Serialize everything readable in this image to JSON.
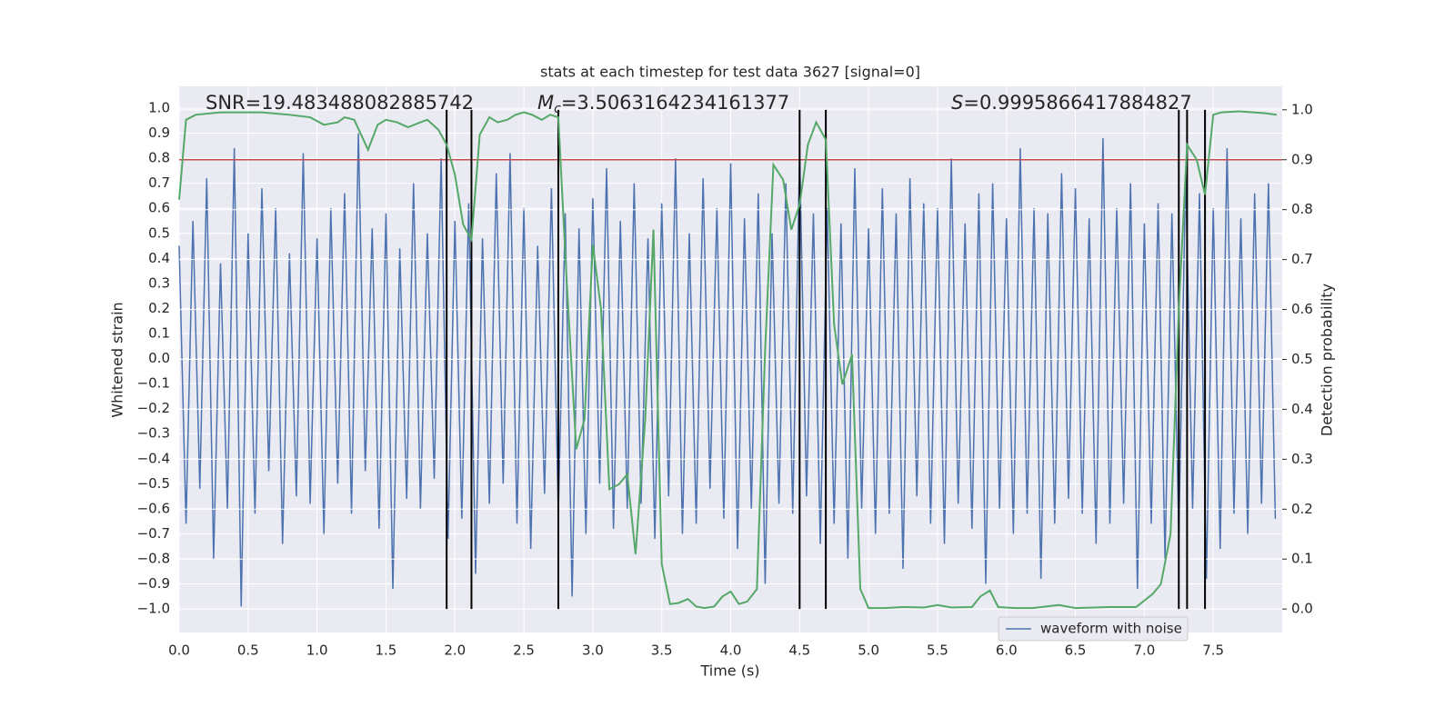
{
  "chart_data": {
    "type": "line",
    "title": "stats at each timestep for test data 3627 [signal=0]",
    "xlabel": "Time (s)",
    "ylabel": "Whitened strain",
    "y2label": "Detection probability",
    "annotations": [
      {
        "text": "SNR=19.483488082885742"
      },
      {
        "symbol": "M",
        "subscript": "c",
        "text": "=3.5063164234161377"
      },
      {
        "symbol": "S",
        "text": "=0.9995866417884827"
      }
    ],
    "xlim": [
      0,
      8
    ],
    "ylim": [
      -1.094,
      1.087
    ],
    "y2lim": [
      -0.047,
      1.047
    ],
    "xticks": [
      {
        "value": 0,
        "label": "0.0"
      },
      0.5,
      {
        "value": 1,
        "label": "1.0"
      },
      1.5,
      {
        "value": 2,
        "label": "2.0"
      },
      2.5,
      {
        "value": 3,
        "label": "3.0"
      },
      3.5,
      {
        "value": 4,
        "label": "4.0"
      },
      4.5,
      {
        "value": 5,
        "label": "5.0"
      },
      5.5,
      {
        "value": 6,
        "label": "6.0"
      },
      6.5,
      {
        "value": 7,
        "label": "7.0"
      },
      7.5
    ],
    "yticks": [
      {
        "value": -1,
        "label": "−1.0"
      },
      {
        "value": -0.9,
        "label": "−0.9"
      },
      {
        "value": -0.8,
        "label": "−0.8"
      },
      {
        "value": -0.7,
        "label": "−0.7"
      },
      {
        "value": -0.6,
        "label": "−0.6"
      },
      {
        "value": -0.5,
        "label": "−0.5"
      },
      {
        "value": -0.4,
        "label": "−0.4"
      },
      {
        "value": -0.3,
        "label": "−0.3"
      },
      {
        "value": -0.2,
        "label": "−0.2"
      },
      {
        "value": -0.1,
        "label": "−0.1"
      },
      {
        "value": 0,
        "label": "0.0"
      },
      0.1,
      0.2,
      0.3,
      0.4,
      0.5,
      0.6,
      0.7,
      0.8,
      0.9,
      {
        "value": 1,
        "label": "1.0"
      }
    ],
    "y2ticks": [
      {
        "value": 0,
        "label": "0.0"
      },
      0.1,
      0.2,
      0.3,
      0.4,
      0.5,
      0.6,
      0.7,
      0.8,
      0.9,
      {
        "value": 1,
        "label": "1.0"
      }
    ],
    "grid": true,
    "legend": "lower right",
    "series": [
      {
        "name": "waveform with noise",
        "color": "#4c72b0",
        "x": [
          0,
          0.05,
          0.1,
          0.15,
          0.2,
          0.25,
          0.3,
          0.35,
          0.4,
          0.45,
          0.5,
          0.55,
          0.6,
          0.65,
          0.7,
          0.75,
          0.8,
          0.85,
          0.9,
          0.95,
          1,
          1.05,
          1.1,
          1.15,
          1.2,
          1.25,
          1.3,
          1.35,
          1.4,
          1.45,
          1.5,
          1.55,
          1.6,
          1.65,
          1.7,
          1.75,
          1.8,
          1.85,
          1.9,
          1.95,
          2,
          2.05,
          2.1,
          2.15,
          2.2,
          2.25,
          2.3,
          2.35,
          2.4,
          2.45,
          2.5,
          2.55,
          2.6,
          2.65,
          2.7,
          2.75,
          2.8,
          2.85,
          2.9,
          2.95,
          3,
          3.05,
          3.1,
          3.15,
          3.2,
          3.25,
          3.3,
          3.35,
          3.4,
          3.45,
          3.5,
          3.55,
          3.6,
          3.65,
          3.7,
          3.75,
          3.8,
          3.85,
          3.9,
          3.95,
          4,
          4.05,
          4.1,
          4.15,
          4.2,
          4.25,
          4.3,
          4.35,
          4.4,
          4.45,
          4.5,
          4.55,
          4.6,
          4.65,
          4.7,
          4.75,
          4.8,
          4.85,
          4.9,
          4.95,
          5,
          5.05,
          5.1,
          5.15,
          5.2,
          5.25,
          5.3,
          5.35,
          5.4,
          5.45,
          5.5,
          5.55,
          5.6,
          5.65,
          5.7,
          5.75,
          5.8,
          5.85,
          5.9,
          5.95,
          6,
          6.05,
          6.1,
          6.15,
          6.2,
          6.25,
          6.3,
          6.35,
          6.4,
          6.45,
          6.5,
          6.55,
          6.6,
          6.65,
          6.7,
          6.75,
          6.8,
          6.85,
          6.9,
          6.95,
          7,
          7.05,
          7.1,
          7.15,
          7.2,
          7.25,
          7.3,
          7.35,
          7.4,
          7.45,
          7.5,
          7.55,
          7.6,
          7.65,
          7.7,
          7.75,
          7.8,
          7.85,
          7.9,
          7.95
        ],
        "values": [
          0.45,
          -0.66,
          0.55,
          -0.52,
          0.72,
          -0.8,
          0.38,
          -0.6,
          0.84,
          -0.99,
          0.5,
          -0.62,
          0.68,
          -0.45,
          0.6,
          -0.74,
          0.42,
          -0.55,
          0.82,
          -0.58,
          0.48,
          -0.7,
          0.6,
          -0.5,
          0.66,
          -0.62,
          0.9,
          -0.45,
          0.52,
          -0.68,
          0.58,
          -0.92,
          0.44,
          -0.56,
          0.7,
          -0.6,
          0.5,
          -0.48,
          0.8,
          -0.72,
          0.55,
          -0.64,
          0.62,
          -0.86,
          0.48,
          -0.58,
          0.74,
          -0.5,
          0.82,
          -0.66,
          0.6,
          -0.76,
          0.45,
          -0.54,
          0.68,
          -0.62,
          0.58,
          -0.95,
          0.52,
          -0.7,
          0.64,
          -0.5,
          0.76,
          -0.68,
          0.55,
          -0.6,
          0.7,
          -0.58,
          0.48,
          -0.72,
          0.62,
          -0.55,
          0.8,
          -0.7,
          0.5,
          -0.66,
          0.72,
          -0.52,
          0.6,
          -0.64,
          0.78,
          -0.76,
          0.56,
          -0.6,
          0.66,
          -0.9,
          0.5,
          -0.58,
          0.7,
          -0.62,
          0.82,
          -0.55,
          0.58,
          -0.74,
          0.6,
          -0.66,
          0.54,
          -0.8,
          0.76,
          -0.6,
          0.52,
          -0.7,
          0.68,
          -0.62,
          0.58,
          -0.84,
          0.72,
          -0.55,
          0.62,
          -0.66,
          0.6,
          -0.74,
          0.8,
          -0.58,
          0.54,
          -0.68,
          0.66,
          -0.9,
          0.7,
          -0.6,
          0.56,
          -0.7,
          0.84,
          -0.62,
          0.6,
          -0.88,
          0.58,
          -0.66,
          0.74,
          -0.56,
          0.68,
          -0.62,
          0.56,
          -0.74,
          0.88,
          -0.66,
          0.6,
          -0.58,
          0.7,
          -0.92,
          0.54,
          -0.66,
          0.62,
          -0.8,
          0.58,
          -0.7,
          0.74,
          -0.6,
          0.66,
          -0.88,
          0.6,
          -0.76,
          0.84,
          -0.62,
          0.56,
          -0.7,
          0.66,
          -0.58,
          0.7,
          -0.64
        ]
      }
    ],
    "probability": {
      "color": "#55a868",
      "axis": "y2",
      "x": [
        0,
        0.05,
        0.12,
        0.3,
        0.6,
        0.8,
        0.95,
        1.05,
        1.15,
        1.2,
        1.27,
        1.37,
        1.44,
        1.5,
        1.58,
        1.66,
        1.75,
        1.8,
        1.88,
        1.94,
        2.0,
        2.06,
        2.12,
        2.18,
        2.25,
        2.31,
        2.38,
        2.44,
        2.5,
        2.56,
        2.63,
        2.69,
        2.75,
        2.81,
        2.88,
        2.94,
        3.0,
        3.06,
        3.12,
        3.19,
        3.25,
        3.31,
        3.38,
        3.44,
        3.5,
        3.56,
        3.62,
        3.69,
        3.75,
        3.81,
        3.88,
        3.94,
        4.0,
        4.06,
        4.12,
        4.19,
        4.25,
        4.31,
        4.38,
        4.44,
        4.5,
        4.56,
        4.62,
        4.69,
        4.75,
        4.81,
        4.88,
        4.94,
        5.0,
        5.12,
        5.25,
        5.4,
        5.5,
        5.6,
        5.75,
        5.81,
        5.88,
        5.94,
        6.06,
        6.19,
        6.38,
        6.5,
        6.75,
        6.94,
        7.06,
        7.12,
        7.19,
        7.25,
        7.31,
        7.38,
        7.44,
        7.5,
        7.56,
        7.69,
        7.88,
        7.96
      ],
      "values": [
        0.82,
        0.98,
        0.99,
        0.995,
        0.995,
        0.99,
        0.985,
        0.97,
        0.975,
        0.985,
        0.98,
        0.92,
        0.97,
        0.98,
        0.975,
        0.965,
        0.975,
        0.98,
        0.96,
        0.93,
        0.87,
        0.77,
        0.74,
        0.95,
        0.985,
        0.975,
        0.98,
        0.99,
        0.995,
        0.99,
        0.98,
        0.99,
        0.985,
        0.66,
        0.32,
        0.38,
        0.73,
        0.6,
        0.24,
        0.25,
        0.27,
        0.11,
        0.38,
        0.76,
        0.09,
        0.01,
        0.012,
        0.02,
        0.005,
        0.002,
        0.005,
        0.025,
        0.035,
        0.01,
        0.015,
        0.04,
        0.52,
        0.89,
        0.86,
        0.76,
        0.81,
        0.93,
        0.975,
        0.94,
        0.57,
        0.45,
        0.51,
        0.04,
        0.002,
        0.002,
        0.004,
        0.003,
        0.008,
        0.003,
        0.004,
        0.025,
        0.037,
        0.004,
        0.002,
        0.002,
        0.008,
        0.002,
        0.004,
        0.004,
        0.03,
        0.05,
        0.15,
        0.6,
        0.93,
        0.9,
        0.83,
        0.99,
        0.995,
        0.997,
        0.993,
        0.99
      ]
    },
    "threshold": {
      "value": 0.9,
      "axis": "y2",
      "color": "#c44e52"
    },
    "vlines": {
      "color": "#000000",
      "x": [
        1.94,
        2.12,
        2.75,
        4.5,
        4.69,
        7.25,
        7.31,
        7.44
      ]
    }
  }
}
